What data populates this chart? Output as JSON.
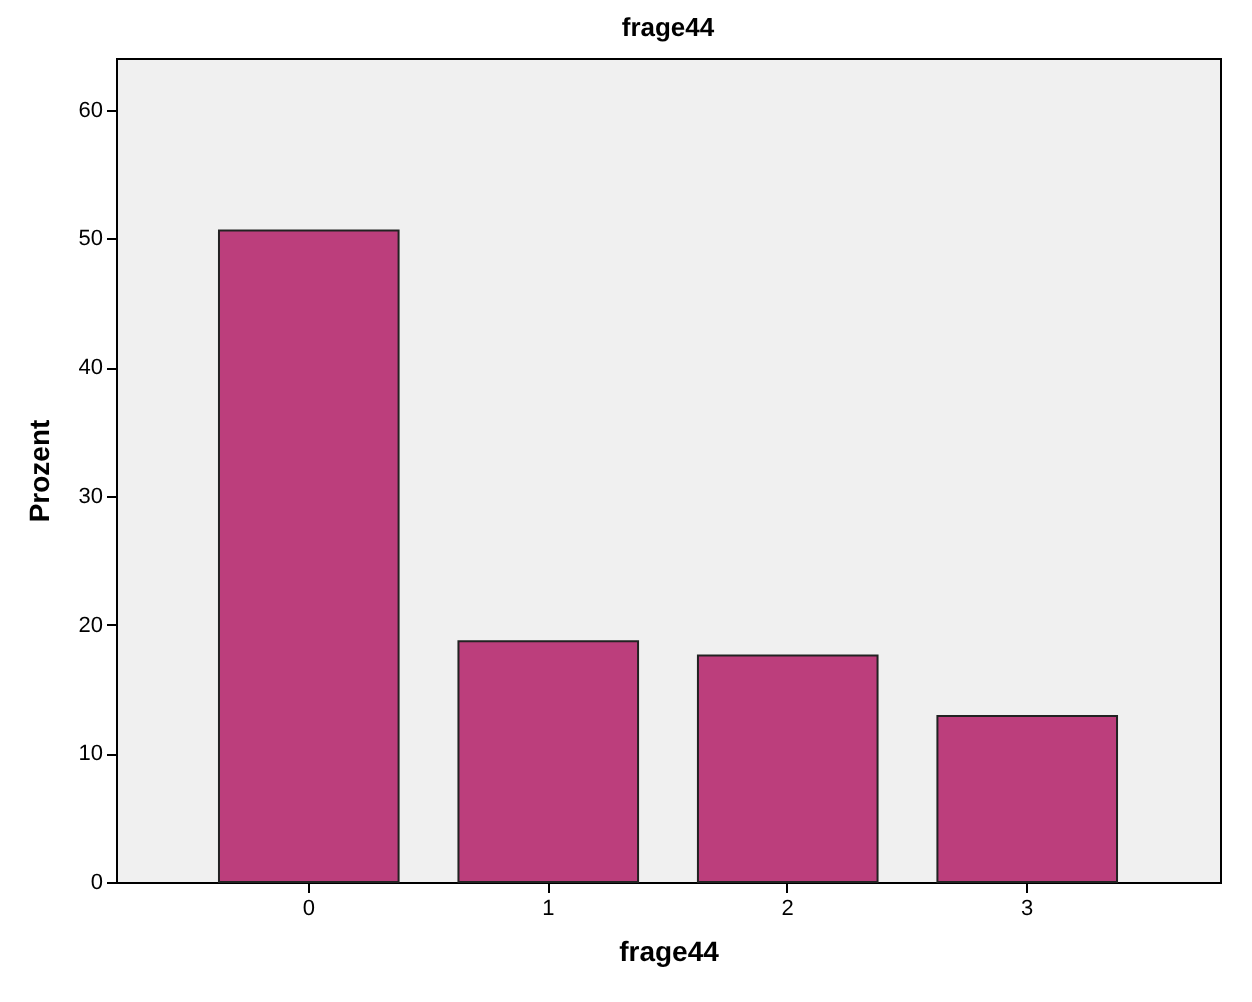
{
  "chart_data": {
    "type": "bar",
    "title": "frage44",
    "xlabel": "frage44",
    "ylabel": "Prozent",
    "categories": [
      "0",
      "1",
      "2",
      "3"
    ],
    "values": [
      50.6,
      18.7,
      17.6,
      12.9
    ],
    "color": "#bc3e7c",
    "ylim": [
      0,
      64
    ],
    "yticks": [
      0,
      10,
      20,
      30,
      40,
      50,
      60
    ],
    "grid": false
  }
}
